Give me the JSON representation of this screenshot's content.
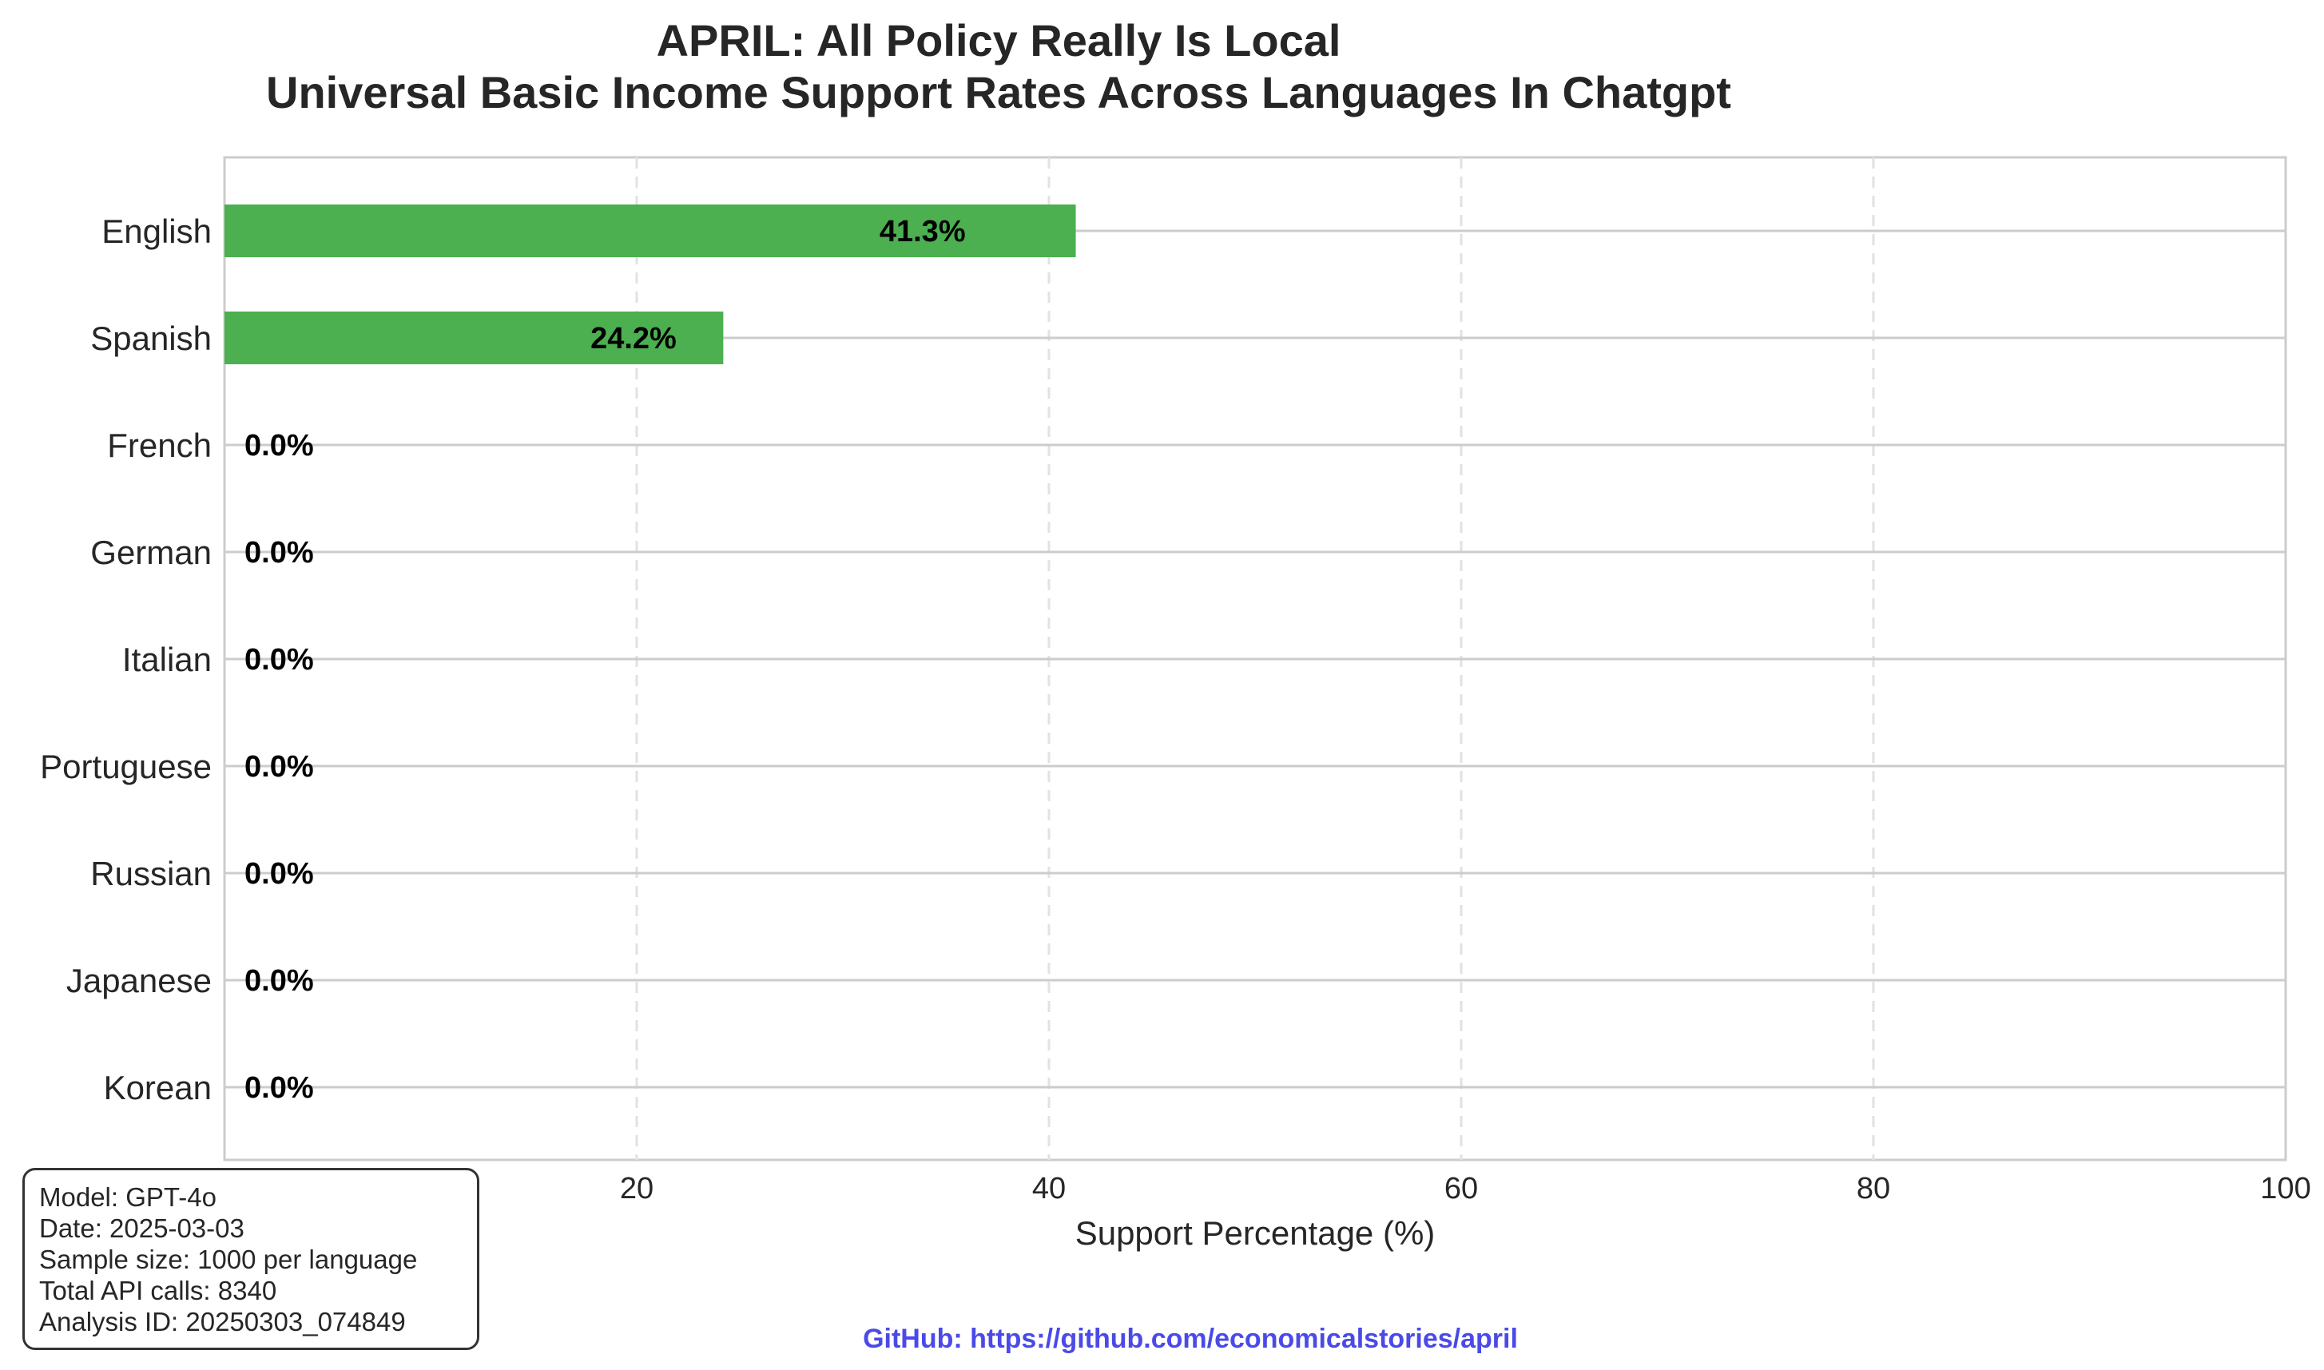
{
  "chart_data": {
    "type": "bar",
    "orientation": "horizontal",
    "title": "APRIL: All Policy Really Is Local",
    "subtitle": "Universal Basic Income Support Rates Across Languages In Chatgpt",
    "xlabel": "Support Percentage (%)",
    "ylabel": "",
    "xlim": [
      0,
      100
    ],
    "xticks": [
      0,
      20,
      40,
      60,
      80,
      100
    ],
    "categories": [
      "English",
      "Spanish",
      "French",
      "German",
      "Italian",
      "Portuguese",
      "Russian",
      "Japanese",
      "Korean"
    ],
    "values": [
      41.3,
      24.2,
      0.0,
      0.0,
      0.0,
      0.0,
      0.0,
      0.0,
      0.0
    ],
    "data_labels": [
      "41.3%",
      "24.2%",
      "0.0%",
      "0.0%",
      "0.0%",
      "0.0%",
      "0.0%",
      "0.0%",
      "0.0%"
    ],
    "bar_color": "#4caf50",
    "grid": true
  },
  "info_box": {
    "lines": [
      "Model: GPT-4o",
      "Date: 2025-03-03",
      "Sample size: 1000 per language",
      "Total API calls: 8340",
      "Analysis ID: 20250303_074849"
    ]
  },
  "footer": {
    "github": "GitHub: https://github.com/economicalstories/april",
    "color": "#4a4ae8"
  }
}
